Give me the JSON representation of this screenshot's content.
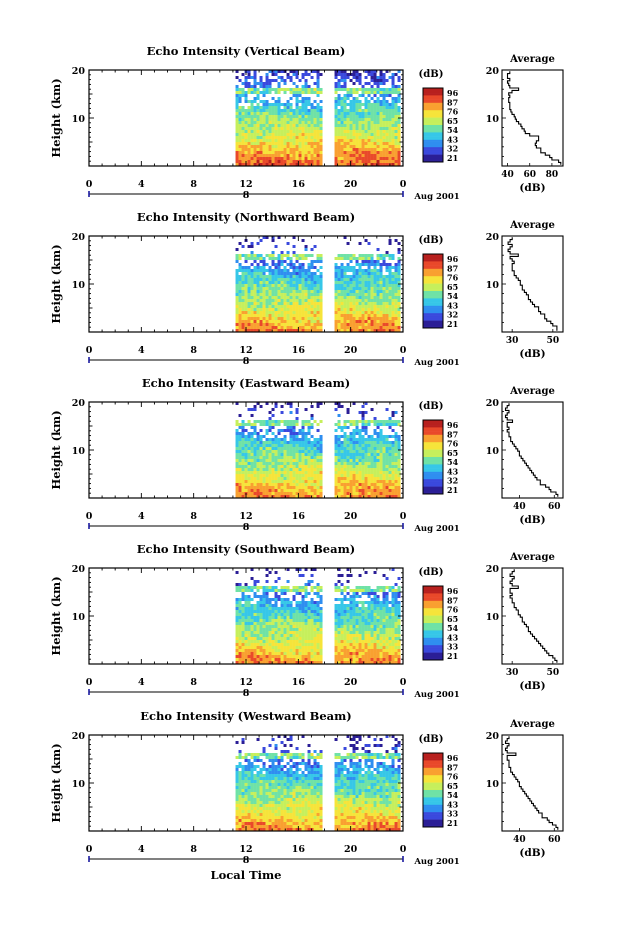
{
  "chart_data": {
    "type": "heatmap",
    "common": {
      "ylabel": "Height (km)",
      "ylim": [
        0,
        20
      ],
      "ytick_labels": [
        "20",
        "10"
      ],
      "xtick_labels": [
        "0",
        "4",
        "8",
        "12",
        "16",
        "20",
        "0"
      ],
      "date_marker": "8",
      "date_label": "Aug 2001",
      "xlabel": "Local Time",
      "colorbar_title": "(dB)",
      "colorbar_ticks": [
        "96",
        "87",
        "76",
        "65",
        "54",
        "43",
        "32",
        "21"
      ],
      "colorbar_ticks_alt": [
        "96",
        "87",
        "76",
        "65",
        "54",
        "43",
        "33",
        "21"
      ],
      "profile_title": "Average",
      "profile_xlabel": "(dB)",
      "colormap": [
        "#2b1e96",
        "#3a49dd",
        "#2f8ef0",
        "#36c7e8",
        "#6fe2a6",
        "#c6ef5c",
        "#f6e43a",
        "#f9a030",
        "#e9492a",
        "#b8201e"
      ],
      "data_gaps_hours": [
        [
          0,
          11.2
        ],
        [
          17.8,
          18.6
        ]
      ]
    },
    "panels": [
      {
        "title": "Echo Intensity (Vertical Beam)",
        "colorbar_ticks": [
          "96",
          "87",
          "76",
          "65",
          "54",
          "43",
          "32",
          "21"
        ],
        "profile_xticks": [
          "40",
          "60",
          "80"
        ],
        "profile_xlim": [
          35,
          90
        ],
        "profile": {
          "height_km": [
            0.5,
            1,
            1.5,
            2,
            2.5,
            3,
            3.5,
            4,
            4.5,
            5,
            5.5,
            6,
            6.5,
            7,
            7.5,
            8,
            8.5,
            9,
            9.5,
            10,
            10.5,
            11,
            11.5,
            12,
            12.5,
            13,
            13.5,
            14,
            14.5,
            15,
            15.5,
            16,
            16.5,
            17,
            17.5,
            18,
            18.5,
            19,
            19.5
          ],
          "avg_db": [
            88,
            86,
            80,
            78,
            74,
            70,
            70,
            66,
            65,
            66,
            68,
            68,
            60,
            56,
            55,
            53,
            52,
            50,
            48,
            47,
            46,
            44,
            43,
            42,
            42,
            42,
            41,
            41,
            42,
            41,
            44,
            50,
            42,
            41,
            40,
            42,
            40,
            40,
            42
          ]
        }
      },
      {
        "title": "Echo Intensity (Northward Beam)",
        "colorbar_ticks": [
          "96",
          "87",
          "76",
          "65",
          "54",
          "43",
          "32",
          "21"
        ],
        "profile_xticks": [
          "30",
          "50"
        ],
        "profile_xlim": [
          25,
          55
        ],
        "profile": {
          "height_km": [
            0.5,
            1,
            1.5,
            2,
            2.5,
            3,
            3.5,
            4,
            4.5,
            5,
            5.5,
            6,
            6.5,
            7,
            7.5,
            8,
            8.5,
            9,
            9.5,
            10,
            10.5,
            11,
            11.5,
            12,
            12.5,
            13,
            13.5,
            14,
            14.5,
            15,
            15.5,
            16,
            16.5,
            17,
            17.5,
            18,
            18.5,
            19,
            19.5
          ],
          "avg_db": [
            52,
            52,
            50,
            49,
            47,
            46,
            46,
            44,
            43,
            43,
            41,
            40,
            39,
            38,
            38,
            37,
            36,
            35,
            35,
            34,
            34,
            33,
            32,
            31,
            31,
            30,
            30,
            30,
            31,
            30,
            29,
            33,
            29,
            28,
            29,
            30,
            28,
            29,
            30
          ]
        }
      },
      {
        "title": "Echo Intensity (Eastward Beam)",
        "colorbar_ticks": [
          "96",
          "87",
          "76",
          "65",
          "54",
          "43",
          "32",
          "21"
        ],
        "profile_xticks": [
          "40",
          "60"
        ],
        "profile_xlim": [
          30,
          65
        ],
        "profile": {
          "height_km": [
            0.5,
            1,
            1.5,
            2,
            2.5,
            3,
            3.5,
            4,
            4.5,
            5,
            5.5,
            6,
            6.5,
            7,
            7.5,
            8,
            8.5,
            9,
            9.5,
            10,
            10.5,
            11,
            11.5,
            12,
            12.5,
            13,
            13.5,
            14,
            14.5,
            15,
            15.5,
            16,
            16.5,
            17,
            17.5,
            18,
            18.5,
            19,
            19.5
          ],
          "avg_db": [
            62,
            61,
            58,
            57,
            55,
            52,
            52,
            50,
            49,
            48,
            47,
            46,
            45,
            44,
            43,
            42,
            41,
            40,
            40,
            39,
            38,
            37,
            36,
            35,
            35,
            34,
            34,
            33,
            34,
            33,
            33,
            36,
            33,
            32,
            33,
            34,
            32,
            33,
            34
          ]
        }
      },
      {
        "title": "Echo Intensity (Southward Beam)",
        "colorbar_ticks": [
          "96",
          "87",
          "76",
          "65",
          "54",
          "43",
          "33",
          "21"
        ],
        "profile_xticks": [
          "30",
          "50"
        ],
        "profile_xlim": [
          25,
          55
        ],
        "profile": {
          "height_km": [
            0.5,
            1,
            1.5,
            2,
            2.5,
            3,
            3.5,
            4,
            4.5,
            5,
            5.5,
            6,
            6.5,
            7,
            7.5,
            8,
            8.5,
            9,
            9.5,
            10,
            10.5,
            11,
            11.5,
            12,
            12.5,
            13,
            13.5,
            14,
            14.5,
            15,
            15.5,
            16,
            16.5,
            17,
            17.5,
            18,
            18.5,
            19,
            19.5
          ],
          "avg_db": [
            52,
            51,
            50,
            48,
            47,
            46,
            45,
            44,
            43,
            42,
            41,
            40,
            39,
            38,
            38,
            37,
            36,
            35,
            35,
            34,
            33,
            33,
            32,
            31,
            31,
            30,
            30,
            29,
            30,
            29,
            29,
            33,
            30,
            29,
            30,
            31,
            29,
            30,
            31
          ]
        }
      },
      {
        "title": "Echo Intensity (Westward Beam)",
        "colorbar_ticks": [
          "96",
          "87",
          "76",
          "65",
          "54",
          "43",
          "33",
          "21"
        ],
        "profile_xticks": [
          "40",
          "60"
        ],
        "profile_xlim": [
          30,
          65
        ],
        "profile": {
          "height_km": [
            0.5,
            1,
            1.5,
            2,
            2.5,
            3,
            3.5,
            4,
            4.5,
            5,
            5.5,
            6,
            6.5,
            7,
            7.5,
            8,
            8.5,
            9,
            9.5,
            10,
            10.5,
            11,
            11.5,
            12,
            12.5,
            13,
            13.5,
            14,
            14.5,
            15,
            15.5,
            16,
            16.5,
            17,
            17.5,
            18,
            18.5,
            19,
            19.5
          ],
          "avg_db": [
            62,
            61,
            59,
            57,
            56,
            53,
            53,
            51,
            50,
            49,
            48,
            47,
            46,
            45,
            44,
            43,
            42,
            41,
            40,
            40,
            39,
            38,
            37,
            36,
            35,
            35,
            34,
            34,
            34,
            33,
            33,
            38,
            33,
            32,
            33,
            34,
            32,
            33,
            34
          ]
        }
      }
    ]
  }
}
